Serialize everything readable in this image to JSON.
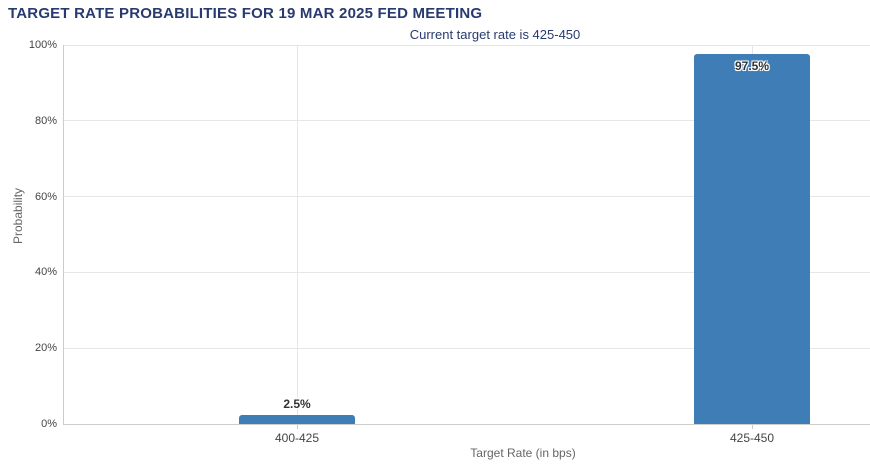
{
  "header": {
    "title": "TARGET RATE PROBABILITIES FOR 19 MAR 2025 FED MEETING",
    "subtitle": "Current target rate is 425-450"
  },
  "chart_data": {
    "type": "bar",
    "title": "TARGET RATE PROBABILITIES FOR 19 MAR 2025 FED MEETING",
    "subtitle": "Current target rate is 425-450",
    "categories": [
      "400-425",
      "425-450"
    ],
    "values": [
      2.5,
      97.5
    ],
    "data_labels": [
      "2.5%",
      "97.5%"
    ],
    "xlabel": "Target Rate (in bps)",
    "ylabel": "Probability",
    "ylim": [
      0,
      100
    ],
    "ytick_step": 20,
    "ytick_labels": [
      "0%",
      "20%",
      "40%",
      "60%",
      "80%",
      "100%"
    ],
    "grid": true,
    "legend": "none",
    "colors": {
      "bar": "#3e7db6",
      "title": "#283a70",
      "subtitle": "#283a70",
      "grid": "#e6e6e6",
      "axis_line": "#cccccc",
      "tick_label": "#444444",
      "axis_title": "#666666",
      "data_label": "#333333"
    }
  }
}
